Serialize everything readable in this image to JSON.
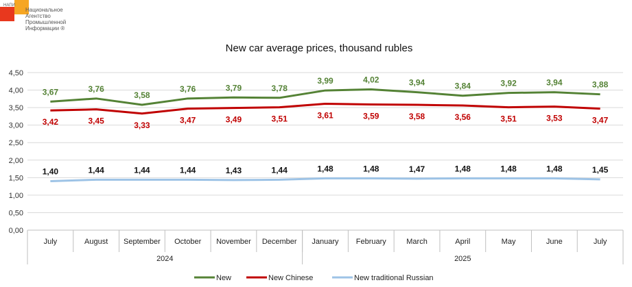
{
  "logo": {
    "abbr": "НАПИ",
    "lines": [
      "Национальное",
      "Агентство",
      "Промышленной",
      "Информации ®"
    ],
    "colors": [
      "#e8381e",
      "#f6a623"
    ]
  },
  "chart_data": {
    "type": "line",
    "title": "New car average prices, thousand rubles",
    "categories": [
      "July",
      "August",
      "September",
      "October",
      "November",
      "December",
      "January",
      "February",
      "March",
      "April",
      "May",
      "June",
      "July"
    ],
    "year_groups": [
      {
        "label": "2024",
        "start": 0,
        "end": 5
      },
      {
        "label": "2025",
        "start": 6,
        "end": 12
      }
    ],
    "ylim": [
      0,
      4.5
    ],
    "yticks": [
      0,
      0.5,
      1.0,
      1.5,
      2.0,
      2.5,
      3.0,
      3.5,
      4.0,
      4.5
    ],
    "ytick_labels": [
      "0,00",
      "0,50",
      "1,00",
      "1,50",
      "2,00",
      "2,50",
      "3,00",
      "3,50",
      "4,00",
      "4,50"
    ],
    "grid": true,
    "legend_position": "bottom",
    "series": [
      {
        "name": "New",
        "color": "#548235",
        "label_color": "#548235",
        "label_position": "above",
        "values": [
          3.67,
          3.76,
          3.58,
          3.76,
          3.79,
          3.78,
          3.99,
          4.02,
          3.94,
          3.84,
          3.92,
          3.94,
          3.88
        ],
        "labels": [
          "3,67",
          "3,76",
          "3,58",
          "3,76",
          "3,79",
          "3,78",
          "3,99",
          "4,02",
          "3,94",
          "3,84",
          "3,92",
          "3,94",
          "3,88"
        ]
      },
      {
        "name": "New Chinese",
        "color": "#c00000",
        "label_color": "#c00000",
        "label_position": "below",
        "values": [
          3.42,
          3.45,
          3.33,
          3.47,
          3.49,
          3.51,
          3.61,
          3.59,
          3.58,
          3.56,
          3.51,
          3.53,
          3.47
        ],
        "labels": [
          "3,42",
          "3,45",
          "3,33",
          "3,47",
          "3,49",
          "3,51",
          "3,61",
          "3,59",
          "3,58",
          "3,56",
          "3,51",
          "3,53",
          "3,47"
        ]
      },
      {
        "name": "New traditional Russian",
        "color": "#9dc3e6",
        "label_color": "#111111",
        "label_position": "above",
        "values": [
          1.4,
          1.44,
          1.44,
          1.44,
          1.43,
          1.44,
          1.48,
          1.48,
          1.47,
          1.48,
          1.48,
          1.48,
          1.45
        ],
        "labels": [
          "1,40",
          "1,44",
          "1,44",
          "1,44",
          "1,43",
          "1,44",
          "1,48",
          "1,48",
          "1,47",
          "1,48",
          "1,48",
          "1,48",
          "1,45"
        ]
      }
    ]
  }
}
